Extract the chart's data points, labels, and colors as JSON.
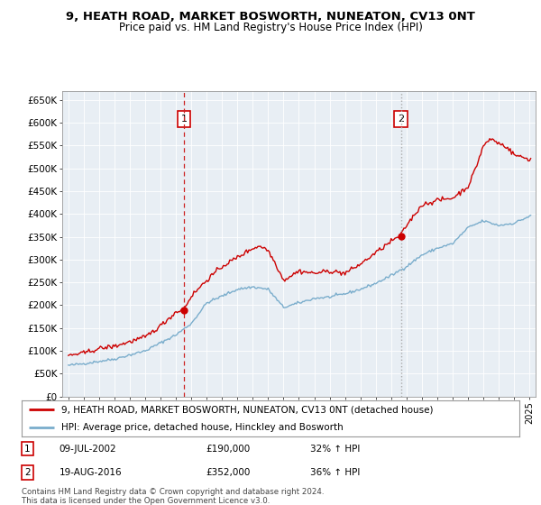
{
  "title": "9, HEATH ROAD, MARKET BOSWORTH, NUNEATON, CV13 0NT",
  "subtitle": "Price paid vs. HM Land Registry's House Price Index (HPI)",
  "ylim": [
    0,
    670000
  ],
  "yticks": [
    0,
    50000,
    100000,
    150000,
    200000,
    250000,
    300000,
    350000,
    400000,
    450000,
    500000,
    550000,
    600000,
    650000
  ],
  "legend_line1": "9, HEATH ROAD, MARKET BOSWORTH, NUNEATON, CV13 0NT (detached house)",
  "legend_line2": "HPI: Average price, detached house, Hinckley and Bosworth",
  "sale1_date": "09-JUL-2002",
  "sale1_price": 190000,
  "sale1_pct": "32%",
  "sale2_date": "19-AUG-2016",
  "sale2_price": 352000,
  "sale2_pct": "36%",
  "footnote": "Contains HM Land Registry data © Crown copyright and database right 2024.\nThis data is licensed under the Open Government Licence v3.0.",
  "sale1_x": 2002.52,
  "sale2_x": 2016.63,
  "red_color": "#cc0000",
  "blue_color": "#7aadcc",
  "chart_bg": "#e8eef4",
  "grid_color": "#ffffff",
  "vline1_color": "#cc2222",
  "vline2_color": "#aaaaaa",
  "background_color": "#ffffff"
}
